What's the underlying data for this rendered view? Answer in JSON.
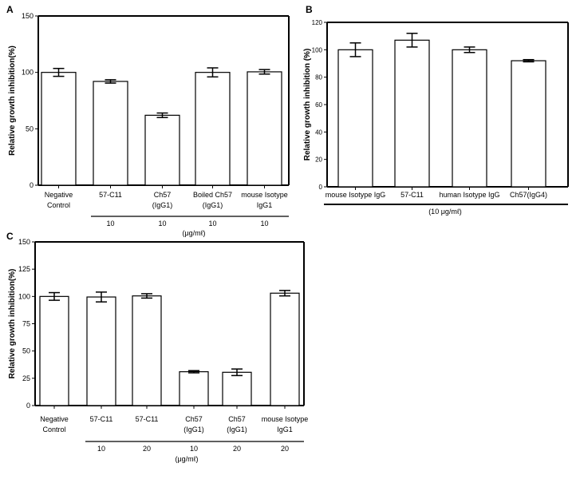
{
  "chart_data": [
    {
      "panel": "A",
      "type": "bar",
      "ylabel": "Relative growth inhibition(%)",
      "ylim": [
        0,
        150
      ],
      "yticks": [
        0,
        50,
        100,
        150
      ],
      "categories": [
        [
          "Negative",
          "Control"
        ],
        [
          "57-C11"
        ],
        [
          "Ch57",
          "(IgG1)"
        ],
        [
          "Boiled Ch57",
          "(IgG1)"
        ],
        [
          "mouse Isotype",
          "IgG1"
        ]
      ],
      "values": [
        100,
        92,
        62,
        100,
        100.5
      ],
      "errors": [
        3.5,
        1.5,
        2,
        4,
        2
      ],
      "doses": [
        "",
        "10",
        "10",
        "10",
        "10"
      ],
      "unit_label": "(μg/mℓ)",
      "grid": false
    },
    {
      "panel": "B",
      "type": "bar",
      "ylabel": "Relative growth inhibition (%)",
      "ylim": [
        0,
        120
      ],
      "yticks": [
        0,
        20,
        40,
        60,
        80,
        100,
        120
      ],
      "categories": [
        [
          "mouse Isotype IgG"
        ],
        [
          "57-C11"
        ],
        [
          "human Isotype IgG"
        ],
        [
          "Ch57(IgG4)"
        ]
      ],
      "values": [
        100,
        107,
        100,
        92
      ],
      "errors": [
        5,
        5,
        2,
        0.8
      ],
      "unit_label": "(10 μg/mℓ)",
      "grid": false
    },
    {
      "panel": "C",
      "type": "bar",
      "ylabel": "Relative growth inhibition(%)",
      "ylim": [
        0,
        150
      ],
      "yticks": [
        0,
        25,
        50,
        75,
        100,
        125,
        150
      ],
      "categories": [
        [
          "Negative",
          "Control"
        ],
        [
          "57-C11"
        ],
        [
          "57-C11"
        ],
        [
          "Ch57",
          "(IgG1)"
        ],
        [
          "Ch57",
          "(IgG1)"
        ],
        [
          "mouse Isotype",
          "IgG1"
        ]
      ],
      "values": [
        100,
        99.5,
        100.5,
        31,
        30.5,
        103
      ],
      "errors": [
        3.5,
        4.5,
        2,
        1,
        3,
        2.5
      ],
      "doses": [
        "",
        "10",
        "20",
        "10",
        "20",
        "20"
      ],
      "unit_label": "(μg/mℓ)",
      "grid": false
    }
  ]
}
